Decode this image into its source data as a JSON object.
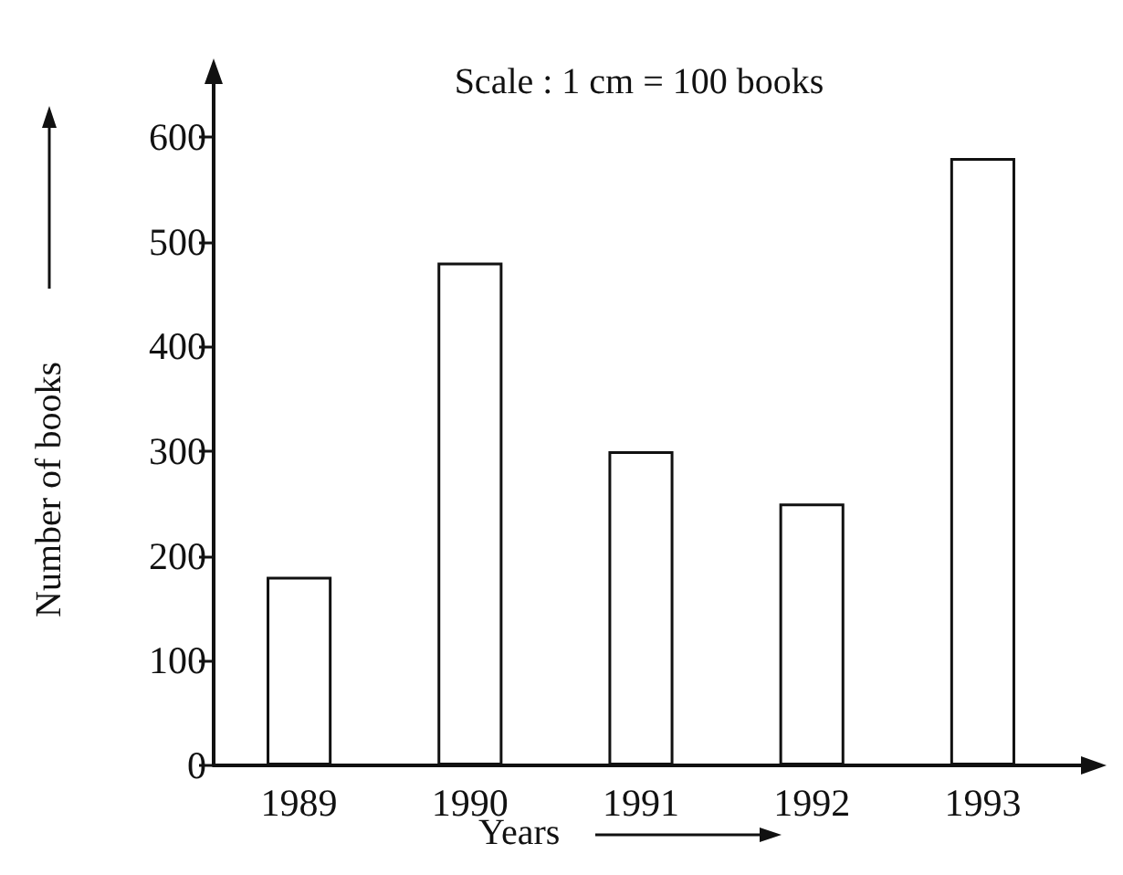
{
  "chart_data": {
    "type": "bar",
    "title": "Scale : 1 cm = 100 books",
    "xlabel": "Years",
    "ylabel": "Number of books",
    "categories": [
      "1989",
      "1990",
      "1991",
      "1992",
      "1993"
    ],
    "values": [
      180,
      480,
      300,
      250,
      580
    ],
    "color": "#ffffff",
    "ylim": [
      0,
      600
    ],
    "yticks": [
      0,
      100,
      200,
      300,
      400,
      500,
      600
    ],
    "grid": false
  }
}
